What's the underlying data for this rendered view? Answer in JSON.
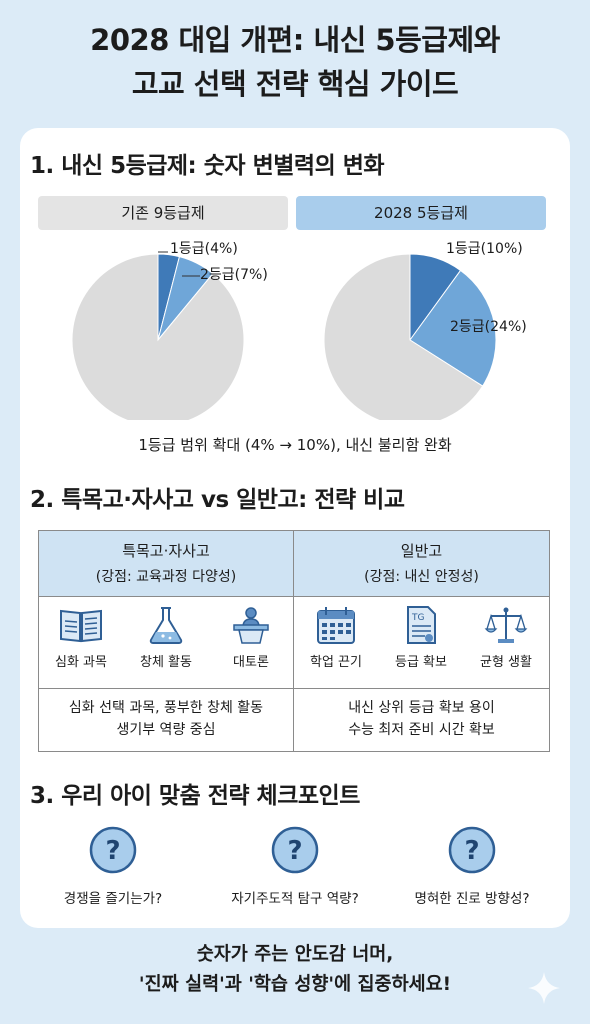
{
  "title": {
    "line1": "2028 대입 개편: 내신 5등급제와",
    "line2": "고교 선택 전략 핵심 가이드"
  },
  "section1": {
    "title": "1. 내신 5등급제: 숫자 변별력의 변화",
    "old_label": "기존 9등급제",
    "new_label": "2028 5등급제",
    "caption": "1등급 범위 확대 (4% → 10%), 내신 불리함 완화"
  },
  "chart_data": [
    {
      "type": "pie",
      "title": "기존 9등급제",
      "slices": [
        {
          "label": "1등급(4%)",
          "value": 4,
          "color": "#3f7ab8"
        },
        {
          "label": "2등급(7%)",
          "value": 7,
          "color": "#6fa6d8"
        },
        {
          "label": "",
          "value": 89,
          "color": "#dcdcdc"
        }
      ]
    },
    {
      "type": "pie",
      "title": "2028 5등급제",
      "slices": [
        {
          "label": "1등급(10%)",
          "value": 10,
          "color": "#3f7ab8"
        },
        {
          "label": "2등급(24%)",
          "value": 24,
          "color": "#6fa6d8"
        },
        {
          "label": "",
          "value": 66,
          "color": "#dcdcdc"
        }
      ]
    }
  ],
  "section2": {
    "title": "2. 특목고·자사고 vs 일반고: 전략 비교",
    "left": {
      "head": "특목고·자사고",
      "strength": "(강점: 교육과정 다양성)",
      "icons": [
        {
          "name": "book-icon",
          "label": "심화 과목"
        },
        {
          "name": "flask-icon",
          "label": "창체 활동"
        },
        {
          "name": "podium-icon",
          "label": "대토론"
        }
      ],
      "desc1": "심화 선택 과목, 풍부한 창체 활동",
      "desc2": "생기부 역량 중심"
    },
    "right": {
      "head": "일반고",
      "strength": "(강점: 내신 안정성)",
      "icons": [
        {
          "name": "calendar-icon",
          "label": "학업 끈기"
        },
        {
          "name": "document-icon",
          "label": "등급 확보",
          "badge": "TG"
        },
        {
          "name": "scale-icon",
          "label": "균형 생활"
        }
      ],
      "desc1": "내신 상위 등급 확보 용이",
      "desc2": "수능 최저 준비 시간 확보"
    }
  },
  "section3": {
    "title": "3. 우리 아이 맞춤 전략 체크포인트",
    "items": [
      {
        "icon": "question-icon",
        "mark": "?",
        "label": "경쟁을 즐기는가?"
      },
      {
        "icon": "question-icon",
        "mark": "?",
        "label": "자기주도적 탐구 역량?"
      },
      {
        "icon": "question-icon",
        "mark": "?",
        "label": "명혀한 진로 방향성?"
      }
    ]
  },
  "footer": {
    "line1": "숫자가 주는 안도감 너머,",
    "line2": "'진짜 실력'과 '학습 성향'에 집중하세요!"
  }
}
